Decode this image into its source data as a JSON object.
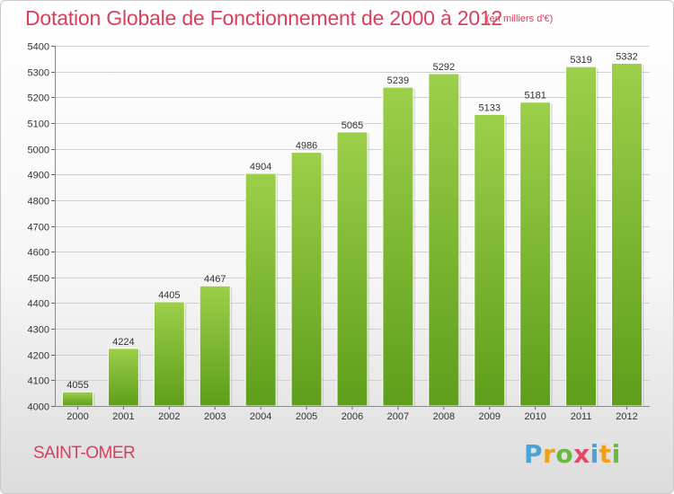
{
  "header": {
    "title": "Dotation Globale de Fonctionnement de 2000 à 2012",
    "subtitle": "(en milliers d'€)"
  },
  "footer": {
    "city": "SAINT-OMER",
    "logo": "Proxiti"
  },
  "colors": {
    "title": "#d8405d",
    "bar_top": "#9ccf4a",
    "bar_bottom": "#5e9e1a",
    "grid": "#d0d0d0"
  },
  "chart_data": {
    "type": "bar",
    "categories": [
      "2000",
      "2001",
      "2002",
      "2003",
      "2004",
      "2005",
      "2006",
      "2007",
      "2008",
      "2009",
      "2010",
      "2011",
      "2012"
    ],
    "values": [
      4055,
      4224,
      4405,
      4467,
      4904,
      4986,
      5065,
      5239,
      5292,
      5133,
      5181,
      5319,
      5332
    ],
    "title": "Dotation Globale de Fonctionnement de 2000 à 2012",
    "subtitle": "(en milliers d'€)",
    "xlabel": "",
    "ylabel": "",
    "ylim": [
      4000,
      5400
    ],
    "yticks": [
      4000,
      4100,
      4200,
      4300,
      4400,
      4500,
      4600,
      4700,
      4800,
      4900,
      5000,
      5100,
      5200,
      5300,
      5400
    ],
    "grid": true,
    "data_labels": true
  }
}
